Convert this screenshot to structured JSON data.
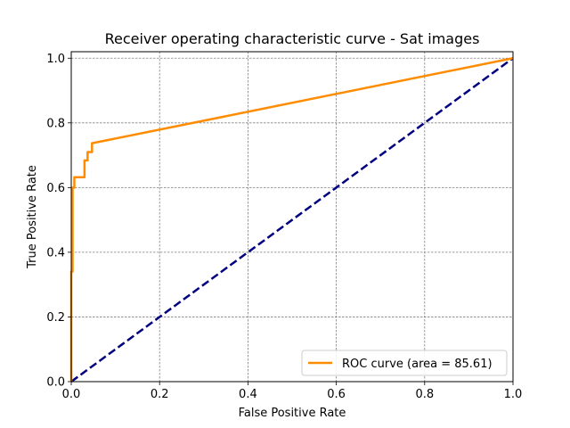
{
  "chart_data": {
    "type": "line",
    "title": "Receiver operating characteristic curve - Sat images",
    "xlabel": "False Positive Rate",
    "ylabel": "True Positive Rate",
    "xlim": [
      0.0,
      1.0
    ],
    "ylim": [
      0.0,
      1.02
    ],
    "xticks": [
      0.0,
      0.2,
      0.4,
      0.6,
      0.8,
      1.0
    ],
    "yticks": [
      0.0,
      0.2,
      0.4,
      0.6,
      0.8,
      1.0
    ],
    "xtick_labels": [
      "0.0",
      "0.2",
      "0.4",
      "0.6",
      "0.8",
      "1.0"
    ],
    "ytick_labels": [
      "0.0",
      "0.2",
      "0.4",
      "0.6",
      "0.8",
      "1.0"
    ],
    "grid": true,
    "legend_position": "lower-right",
    "series": [
      {
        "name": "ROC curve (area = 85.61)",
        "color": "#ff8c00",
        "style": "solid",
        "x": [
          0.0,
          0.0,
          0.003,
          0.003,
          0.007,
          0.007,
          0.03,
          0.03,
          0.037,
          0.037,
          0.047,
          0.047,
          1.0
        ],
        "y": [
          0.0,
          0.34,
          0.34,
          0.6,
          0.6,
          0.632,
          0.632,
          0.684,
          0.684,
          0.71,
          0.71,
          0.737,
          1.0
        ]
      },
      {
        "name": "",
        "color": "#000080",
        "style": "dashed",
        "x": [
          0.0,
          1.0
        ],
        "y": [
          0.0,
          1.0
        ]
      }
    ]
  }
}
